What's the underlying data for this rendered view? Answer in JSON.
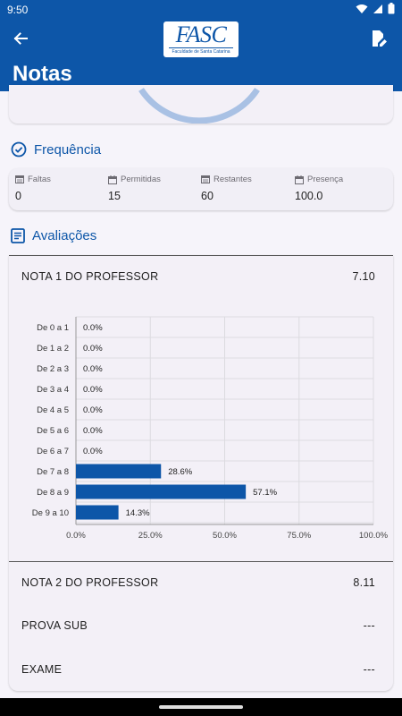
{
  "status_bar": {
    "time": "9:50"
  },
  "app_bar": {
    "title": "Notas",
    "logo_main": "FASC",
    "logo_sub": "Faculdade de Santa Catarina"
  },
  "frequencia": {
    "title": "Frequência",
    "stats": [
      {
        "label": "Faltas",
        "value": "0"
      },
      {
        "label": "Permitidas",
        "value": "15"
      },
      {
        "label": "Restantes",
        "value": "60"
      },
      {
        "label": "Presença",
        "value": "100.0"
      }
    ]
  },
  "avaliacoes": {
    "title": "Avaliações",
    "grades": [
      {
        "name": "NOTA 1 DO PROFESSOR",
        "value": "7.10"
      },
      {
        "name": "NOTA 2 DO PROFESSOR",
        "value": "8.11"
      },
      {
        "name": "PROVA SUB",
        "value": "---"
      },
      {
        "name": "EXAME",
        "value": "---"
      }
    ]
  },
  "colors": {
    "primary": "#0d56a8",
    "bar": "#0d56a8",
    "ring": "#a9c1e4"
  },
  "chart_data": {
    "type": "bar",
    "orientation": "horizontal",
    "categories": [
      "De 0 a 1",
      "De 1 a 2",
      "De 2 a 3",
      "De 3 a 4",
      "De 4 a 5",
      "De 5 a 6",
      "De 6 a 7",
      "De 7 a 8",
      "De 8 a 9",
      "De 9 a 10"
    ],
    "values": [
      0.0,
      0.0,
      0.0,
      0.0,
      0.0,
      0.0,
      0.0,
      28.6,
      57.1,
      14.3
    ],
    "value_labels": [
      "0.0%",
      "0.0%",
      "0.0%",
      "0.0%",
      "0.0%",
      "0.0%",
      "0.0%",
      "28.6%",
      "57.1%",
      "14.3%"
    ],
    "x_ticks": [
      "0.0%",
      "25.0%",
      "50.0%",
      "75.0%",
      "100.0%"
    ],
    "xlim": [
      0,
      100
    ],
    "grid": true,
    "title": "",
    "xlabel": "",
    "ylabel": ""
  }
}
